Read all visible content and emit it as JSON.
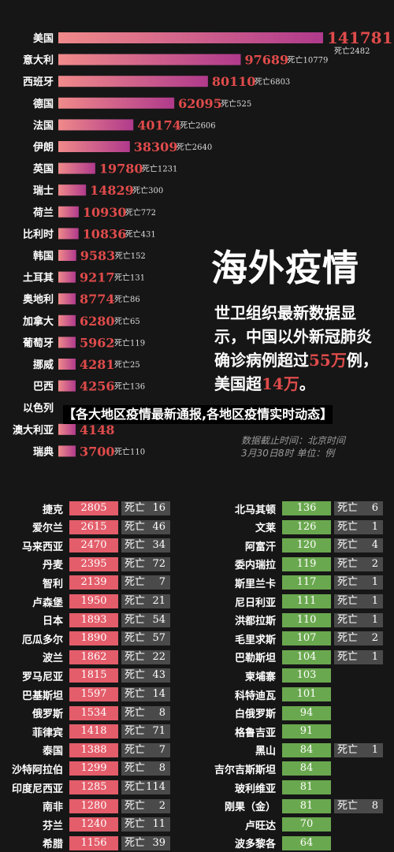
{
  "headline": "海外疫情",
  "lead": {
    "part1": "世卫组织最新数据显示，中国以外新冠肺炎确诊病例超过",
    "accent1": "55万",
    "part2": "例，美国超",
    "accent2": "14万",
    "part3": "。"
  },
  "banner": "【各大地区疫情最新通报,各地区疫情实时动态】",
  "source": {
    "line1": "数据截止时间：北京时间",
    "line2": "3月30日8时  单位：例"
  },
  "death_label": "死亡",
  "colors": {
    "bar_light": "#f08a8a",
    "bar_dark": "#b03a8c",
    "red_cell": "#e35d6a",
    "green_cell": "#6aa84f",
    "death_cell": "#4a4a4a"
  },
  "chart_data": {
    "type": "bar",
    "orientation": "horizontal",
    "categories": [
      "美国",
      "意大利",
      "西班牙",
      "德国",
      "法国",
      "伊朗",
      "英国",
      "瑞士",
      "荷兰",
      "比利时",
      "韩国",
      "土耳其",
      "奥地利",
      "加拿大",
      "葡萄牙",
      "挪威",
      "巴西",
      "以色列",
      "澳大利亚",
      "瑞典"
    ],
    "values": [
      141781,
      97689,
      80110,
      62095,
      40174,
      38309,
      19780,
      14829,
      10930,
      10836,
      9583,
      9217,
      8774,
      6280,
      5962,
      4281,
      4256,
      null,
      4148,
      3700
    ],
    "deaths": [
      2482,
      10779,
      6803,
      525,
      2606,
      2640,
      1231,
      300,
      772,
      431,
      152,
      131,
      86,
      65,
      119,
      25,
      136,
      null,
      null,
      110
    ]
  },
  "left_table": [
    {
      "name": "捷克",
      "cases": "2805",
      "deaths": "16"
    },
    {
      "name": "爱尔兰",
      "cases": "2615",
      "deaths": "46"
    },
    {
      "name": "马来西亚",
      "cases": "2470",
      "deaths": "34"
    },
    {
      "name": "丹麦",
      "cases": "2395",
      "deaths": "72"
    },
    {
      "name": "智利",
      "cases": "2139",
      "deaths": "7"
    },
    {
      "name": "卢森堡",
      "cases": "1950",
      "deaths": "21"
    },
    {
      "name": "日本",
      "cases": "1893",
      "deaths": "54"
    },
    {
      "name": "厄瓜多尔",
      "cases": "1890",
      "deaths": "57"
    },
    {
      "name": "波兰",
      "cases": "1862",
      "deaths": "22"
    },
    {
      "name": "罗马尼亚",
      "cases": "1815",
      "deaths": "43"
    },
    {
      "name": "巴基斯坦",
      "cases": "1597",
      "deaths": "14"
    },
    {
      "name": "俄罗斯",
      "cases": "1534",
      "deaths": "8"
    },
    {
      "name": "菲律宾",
      "cases": "1418",
      "deaths": "71"
    },
    {
      "name": "泰国",
      "cases": "1388",
      "deaths": "7"
    },
    {
      "name": "沙特阿拉伯",
      "cases": "1299",
      "deaths": "8"
    },
    {
      "name": "印度尼西亚",
      "cases": "1285",
      "deaths": "114"
    },
    {
      "name": "南非",
      "cases": "1280",
      "deaths": "2"
    },
    {
      "name": "芬兰",
      "cases": "1240",
      "deaths": "11"
    },
    {
      "name": "希腊",
      "cases": "1156",
      "deaths": "39"
    }
  ],
  "right_table": [
    {
      "name": "北马其顿",
      "cases": "136",
      "deaths": "6"
    },
    {
      "name": "文莱",
      "cases": "126",
      "deaths": "1"
    },
    {
      "name": "阿富汗",
      "cases": "120",
      "deaths": "4"
    },
    {
      "name": "委内瑞拉",
      "cases": "119",
      "deaths": "2"
    },
    {
      "name": "斯里兰卡",
      "cases": "117",
      "deaths": "1"
    },
    {
      "name": "尼日利亚",
      "cases": "111",
      "deaths": "1"
    },
    {
      "name": "洪都拉斯",
      "cases": "110",
      "deaths": "1"
    },
    {
      "name": "毛里求斯",
      "cases": "107",
      "deaths": "2"
    },
    {
      "name": "巴勒斯坦",
      "cases": "104",
      "deaths": "1"
    },
    {
      "name": "柬埔寨",
      "cases": "103",
      "deaths": null
    },
    {
      "name": "科特迪瓦",
      "cases": "101",
      "deaths": null
    },
    {
      "name": "白俄罗斯",
      "cases": "94",
      "deaths": null
    },
    {
      "name": "格鲁吉亚",
      "cases": "91",
      "deaths": null
    },
    {
      "name": "黑山",
      "cases": "84",
      "deaths": "1"
    },
    {
      "name": "吉尔吉斯斯坦",
      "cases": "84",
      "deaths": null
    },
    {
      "name": "玻利维亚",
      "cases": "81",
      "deaths": null
    },
    {
      "name": "刚果（金）",
      "cases": "81",
      "deaths": "8"
    },
    {
      "name": "卢旺达",
      "cases": "70",
      "deaths": null
    },
    {
      "name": "波多黎各",
      "cases": "64",
      "deaths": null
    }
  ]
}
